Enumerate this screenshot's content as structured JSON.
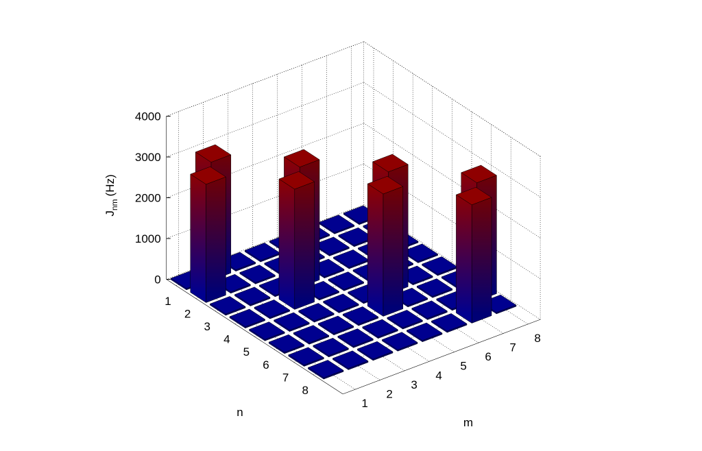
{
  "chart_data": {
    "type": "bar3",
    "zlabel": "J",
    "zlabel_subscript": "nm",
    "zlabel_unit": "(Hz)",
    "xlabel": "n",
    "ylabel": "m",
    "n": [
      1,
      2,
      3,
      4,
      5,
      6,
      7,
      8
    ],
    "m": [
      1,
      2,
      3,
      4,
      5,
      6,
      7,
      8
    ],
    "values": [
      [
        0,
        2900,
        0,
        0,
        0,
        0,
        0,
        0
      ],
      [
        2900,
        0,
        0,
        0,
        0,
        0,
        0,
        0
      ],
      [
        0,
        0,
        0,
        2950,
        0,
        0,
        0,
        0
      ],
      [
        0,
        0,
        2950,
        0,
        0,
        0,
        0,
        0
      ],
      [
        0,
        0,
        0,
        0,
        0,
        3000,
        0,
        0
      ],
      [
        0,
        0,
        0,
        0,
        3000,
        0,
        0,
        0
      ],
      [
        0,
        0,
        0,
        0,
        0,
        0,
        0,
        2900
      ],
      [
        0,
        0,
        0,
        0,
        0,
        0,
        2900,
        0
      ]
    ],
    "zlim": [
      0,
      4000
    ],
    "zticks": [
      0,
      1000,
      2000,
      3000,
      4000
    ],
    "color_low": "#00008f",
    "color_high": "#8f0000",
    "grid": true
  }
}
